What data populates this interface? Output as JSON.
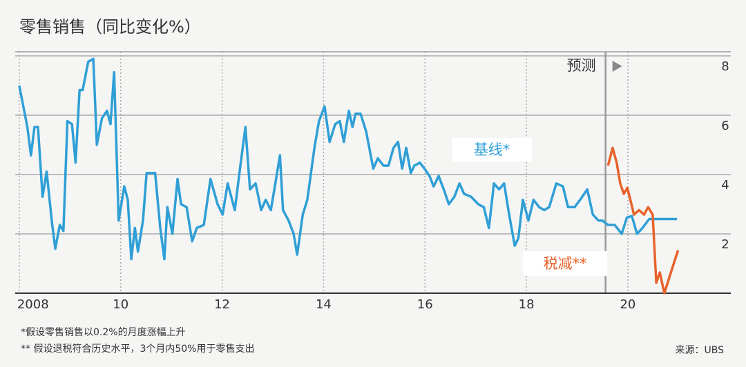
{
  "chart_data": {
    "type": "line",
    "title": "零售销售（同比变化%）",
    "forecast_label": "预测",
    "forecast_x": 2019.56,
    "footnotes": [
      "*假设零售销售以0.2%的月度涨幅上升",
      "** 假设退税符合历史水平，3个月内50%用于零售支出"
    ],
    "source": "来源：UBS",
    "xlim": [
      2007.92,
      2022.03
    ],
    "xticks": [
      {
        "value": 2008,
        "label": "2008"
      },
      {
        "value": 2010,
        "label": "10"
      },
      {
        "value": 2012,
        "label": "12"
      },
      {
        "value": 2014,
        "label": "14"
      },
      {
        "value": 2016,
        "label": "16"
      },
      {
        "value": 2018,
        "label": "18"
      },
      {
        "value": 2020,
        "label": "20"
      }
    ],
    "ylim": [
      0,
      8.14
    ],
    "yticks": [
      2,
      4,
      6,
      8
    ],
    "grid": true,
    "series": [
      {
        "name": "基线*",
        "color": "#2f9fd6",
        "x": [
          2008.0,
          2008.16,
          2008.23,
          2008.3,
          2008.37,
          2008.46,
          2008.54,
          2008.64,
          2008.71,
          2008.8,
          2008.87,
          2008.95,
          2009.04,
          2009.11,
          2009.19,
          2009.25,
          2009.36,
          2009.46,
          2009.53,
          2009.63,
          2009.73,
          2009.8,
          2009.87,
          2009.96,
          2010.07,
          2010.14,
          2010.21,
          2010.28,
          2010.34,
          2010.44,
          2010.51,
          2010.59,
          2010.68,
          2010.78,
          2010.86,
          2010.92,
          2011.02,
          2011.12,
          2011.19,
          2011.3,
          2011.41,
          2011.5,
          2011.64,
          2011.77,
          2011.91,
          2012.01,
          2012.11,
          2012.25,
          2012.36,
          2012.46,
          2012.55,
          2012.66,
          2012.77,
          2012.86,
          2012.96,
          2013.04,
          2013.14,
          2013.2,
          2013.31,
          2013.41,
          2013.48,
          2013.59,
          2013.68,
          2013.82,
          2013.91,
          2014.02,
          2014.12,
          2014.23,
          2014.32,
          2014.4,
          2014.5,
          2014.57,
          2014.63,
          2014.73,
          2014.84,
          2014.98,
          2015.07,
          2015.18,
          2015.28,
          2015.38,
          2015.47,
          2015.55,
          2015.63,
          2015.72,
          2015.79,
          2015.9,
          2015.99,
          2016.09,
          2016.17,
          2016.27,
          2016.37,
          2016.47,
          2016.58,
          2016.68,
          2016.77,
          2016.91,
          2017.05,
          2017.16,
          2017.26,
          2017.36,
          2017.46,
          2017.56,
          2017.66,
          2017.77,
          2017.84,
          2017.93,
          2018.04,
          2018.14,
          2018.25,
          2018.35,
          2018.45,
          2018.59,
          2018.72,
          2018.82,
          2018.95,
          2019.06,
          2019.2,
          2019.31,
          2019.42,
          2019.5,
          2019.61,
          2019.74,
          2019.88,
          2019.98,
          2020.08,
          2020.18,
          2020.29,
          2020.42,
          2020.56,
          2020.97
        ],
        "values": [
          7.0,
          5.6,
          4.65,
          5.6,
          5.6,
          3.25,
          4.1,
          2.45,
          1.5,
          2.3,
          2.1,
          5.8,
          5.7,
          4.4,
          6.85,
          6.85,
          7.8,
          7.9,
          5.0,
          5.9,
          6.15,
          5.7,
          7.45,
          2.45,
          3.6,
          3.15,
          1.15,
          2.2,
          1.4,
          2.45,
          4.05,
          4.05,
          4.05,
          2.2,
          1.15,
          2.9,
          2.0,
          3.85,
          3.0,
          2.9,
          1.75,
          2.2,
          2.3,
          3.85,
          3.0,
          2.65,
          3.7,
          2.8,
          4.3,
          5.6,
          3.5,
          3.7,
          2.8,
          3.15,
          2.8,
          3.6,
          4.65,
          2.8,
          2.45,
          2.0,
          1.3,
          2.65,
          3.15,
          4.9,
          5.8,
          6.3,
          5.1,
          5.7,
          5.8,
          5.1,
          6.15,
          5.6,
          6.05,
          6.05,
          5.45,
          4.2,
          4.55,
          4.3,
          4.3,
          4.9,
          5.1,
          4.2,
          4.9,
          4.05,
          4.3,
          4.4,
          4.2,
          3.95,
          3.6,
          3.95,
          3.5,
          3.0,
          3.25,
          3.7,
          3.35,
          3.25,
          3.0,
          2.9,
          2.2,
          3.7,
          3.5,
          3.7,
          2.65,
          1.6,
          1.85,
          3.15,
          2.45,
          3.15,
          2.9,
          2.8,
          2.9,
          3.7,
          3.6,
          2.9,
          2.9,
          3.15,
          3.5,
          2.65,
          2.45,
          2.45,
          2.3,
          2.3,
          2.0,
          2.55,
          2.6,
          2.0,
          2.2,
          2.5,
          2.5,
          2.5
        ]
      },
      {
        "name": "税减**",
        "color": "#e8632b",
        "x": [
          2019.61,
          2019.7,
          2019.78,
          2019.85,
          2019.92,
          2019.99,
          2020.05,
          2020.12,
          2020.22,
          2020.32,
          2020.4,
          2020.49,
          2020.56,
          2020.63,
          2020.72,
          2020.83,
          2020.99
        ],
        "values": [
          4.3,
          4.9,
          4.4,
          3.7,
          3.35,
          3.55,
          3.15,
          2.65,
          2.8,
          2.65,
          2.9,
          2.65,
          0.35,
          0.7,
          0.0,
          0.6,
          1.45
        ]
      }
    ]
  }
}
